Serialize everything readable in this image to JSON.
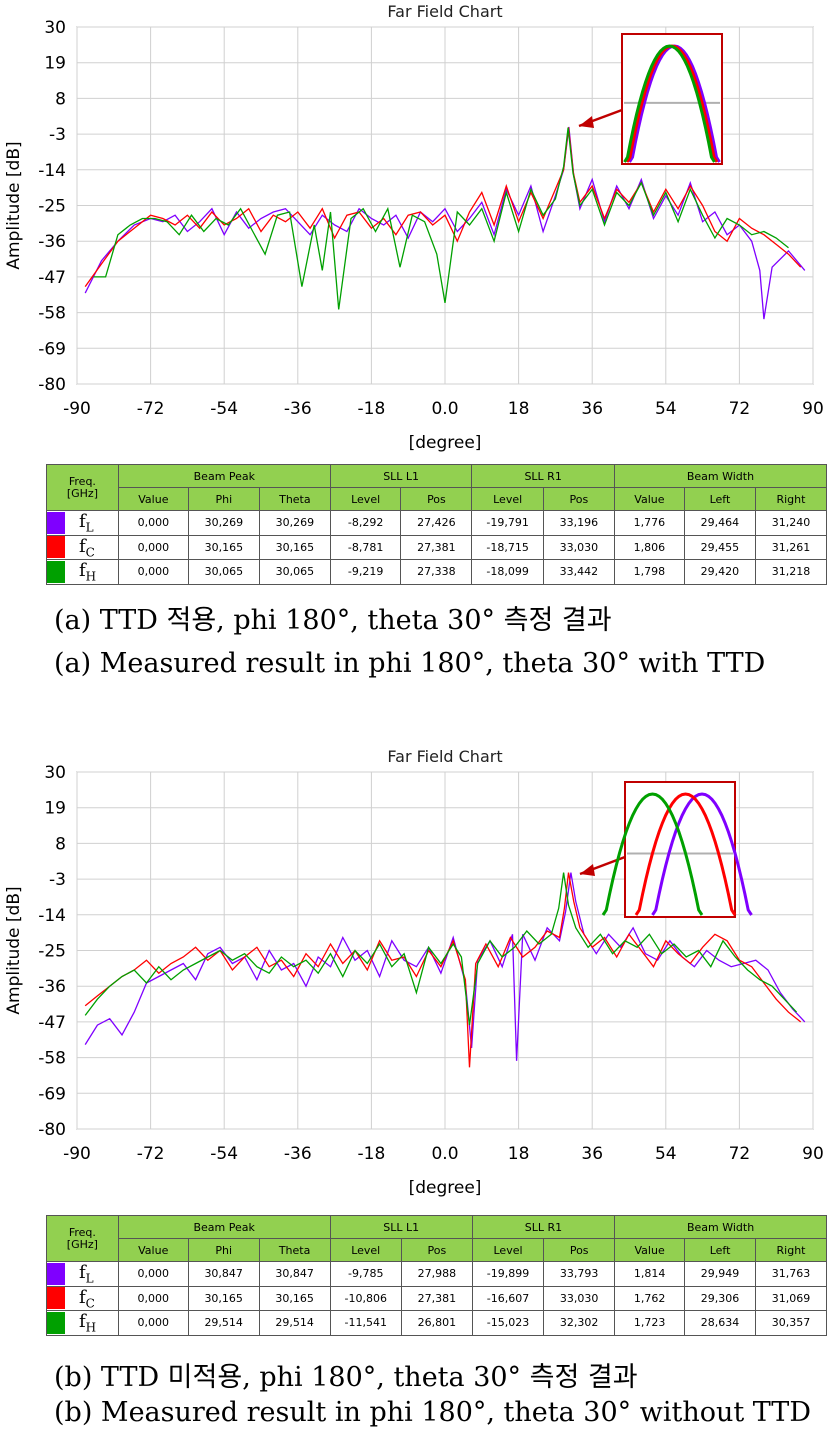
{
  "panels": [
    {
      "caption_kr": "(a) TTD 적용, phi 180°, theta 30° 측정 결과",
      "caption_en": "(a) Measured result in phi 180°, theta 30° with TTD",
      "table": {
        "freq_header": [
          "Freq.",
          "[GHz]"
        ],
        "groups": [
          "Beam Peak",
          "SLL L1",
          "SLL R1",
          "Beam Width"
        ],
        "subheaders": [
          "Value",
          "Phi",
          "Theta",
          "Level",
          "Pos",
          "Level",
          "Pos",
          "Value",
          "Left",
          "Right"
        ],
        "rows": [
          {
            "label": "f",
            "sub": "L",
            "color": "#7f00ff",
            "values": [
              "0,000",
              "30,269",
              "30,269",
              "-8,292",
              "27,426",
              "-19,791",
              "33,196",
              "1,776",
              "29,464",
              "31,240"
            ]
          },
          {
            "label": "f",
            "sub": "C",
            "color": "#ff0000",
            "values": [
              "0,000",
              "30,165",
              "30,165",
              "-8,781",
              "27,381",
              "-18,715",
              "33,030",
              "1,806",
              "29,455",
              "31,261"
            ]
          },
          {
            "label": "f",
            "sub": "H",
            "color": "#00a000",
            "values": [
              "0,000",
              "30,065",
              "30,065",
              "-9,219",
              "27,338",
              "-18,099",
              "33,442",
              "1,798",
              "29,420",
              "31,218"
            ]
          }
        ]
      }
    },
    {
      "caption_kr": "(b) TTD 미적용, phi 180°, theta 30° 측정 결과",
      "caption_en": "(b) Measured result in phi 180°, theta 30° without TTD",
      "table": {
        "freq_header": [
          "Freq.",
          "[GHz]"
        ],
        "groups": [
          "Beam Peak",
          "SLL L1",
          "SLL R1",
          "Beam Width"
        ],
        "subheaders": [
          "Value",
          "Phi",
          "Theta",
          "Level",
          "Pos",
          "Level",
          "Pos",
          "Value",
          "Left",
          "Right"
        ],
        "rows": [
          {
            "label": "f",
            "sub": "L",
            "color": "#7f00ff",
            "values": [
              "0,000",
              "30,847",
              "30,847",
              "-9,785",
              "27,988",
              "-19,899",
              "33,793",
              "1,814",
              "29,949",
              "31,763"
            ]
          },
          {
            "label": "f",
            "sub": "C",
            "color": "#ff0000",
            "values": [
              "0,000",
              "30,165",
              "30,165",
              "-10,806",
              "27,381",
              "-16,607",
              "33,030",
              "1,762",
              "29,306",
              "31,069"
            ]
          },
          {
            "label": "f",
            "sub": "H",
            "color": "#00a000",
            "values": [
              "0,000",
              "29,514",
              "29,514",
              "-11,541",
              "26,801",
              "-15,023",
              "32,302",
              "1,723",
              "28,634",
              "30,357"
            ]
          }
        ]
      }
    }
  ],
  "chart_data": [
    {
      "type": "line",
      "title": "Far Field Chart",
      "xlabel": "[degree]",
      "ylabel": "Amplitude [dB]",
      "xlim": [
        -90,
        90
      ],
      "ylim": [
        -80,
        30
      ],
      "xticks": [
        "-90",
        "-72",
        "-54",
        "-36",
        "-18",
        "0.0",
        "18",
        "36",
        "54",
        "72",
        "90"
      ],
      "yticks": [
        "30",
        "19",
        "8",
        "-3",
        "-14",
        "-25",
        "-36",
        "-47",
        "-58",
        "-69",
        "-80"
      ],
      "grid": true,
      "inset_zoom": true,
      "series": [
        {
          "color": "#7f00ff",
          "x": [
            -88,
            -84,
            -80,
            -76,
            -72,
            -69,
            -66,
            -63,
            -60,
            -57,
            -54,
            -51,
            -48,
            -45,
            -42,
            -39,
            -36,
            -33,
            -30,
            -27,
            -24,
            -21,
            -18,
            -15,
            -12,
            -9,
            -6,
            -3,
            0,
            3,
            6,
            9,
            12,
            15,
            18,
            21,
            24,
            27,
            29,
            30.3,
            31.5,
            33,
            36,
            39,
            42,
            45,
            48,
            51,
            54,
            57,
            60,
            63,
            66,
            69,
            72,
            75,
            77,
            78,
            80,
            84,
            88
          ],
          "y": [
            -52,
            -42,
            -36,
            -31,
            -29,
            -30,
            -28,
            -33,
            -30,
            -26,
            -34,
            -27,
            -32,
            -29,
            -27,
            -26,
            -30,
            -34,
            -28,
            -31,
            -33,
            -26,
            -29,
            -31,
            -28,
            -35,
            -27,
            -30,
            -26,
            -33,
            -29,
            -24,
            -34,
            -20,
            -28,
            -19,
            -33,
            -22,
            -14,
            -0.8,
            -16,
            -26,
            -17,
            -30,
            -19,
            -26,
            -17,
            -29,
            -22,
            -28,
            -18,
            -30,
            -27,
            -34,
            -31,
            -36,
            -45,
            -60,
            -44,
            -39,
            -45
          ]
        },
        {
          "color": "#ff0000",
          "x": [
            -88,
            -84,
            -80,
            -76,
            -72,
            -69,
            -66,
            -63,
            -60,
            -57,
            -54,
            -51,
            -48,
            -45,
            -42,
            -39,
            -36,
            -33,
            -30,
            -27,
            -24,
            -21,
            -18,
            -15,
            -12,
            -9,
            -6,
            -3,
            0,
            3,
            6,
            9,
            12,
            15,
            18,
            21,
            24,
            27,
            29,
            30.2,
            31.4,
            33,
            36,
            39,
            42,
            45,
            48,
            51,
            54,
            57,
            60,
            63,
            66,
            69,
            72,
            75,
            78,
            81,
            84,
            87
          ],
          "y": [
            -50,
            -43,
            -36,
            -32,
            -28,
            -29,
            -31,
            -28,
            -32,
            -27,
            -31,
            -29,
            -26,
            -33,
            -28,
            -30,
            -27,
            -32,
            -26,
            -35,
            -28,
            -27,
            -32,
            -29,
            -34,
            -28,
            -27,
            -31,
            -28,
            -36,
            -27,
            -21,
            -31,
            -19,
            -30,
            -21,
            -29,
            -20,
            -14,
            -0.9,
            -15,
            -24,
            -19,
            -29,
            -20,
            -24,
            -18,
            -27,
            -20,
            -26,
            -19,
            -25,
            -33,
            -36,
            -29,
            -32,
            -34,
            -37,
            -40,
            -44
          ]
        },
        {
          "color": "#00a000",
          "x": [
            -86,
            -83,
            -80,
            -77,
            -74,
            -71,
            -68,
            -65,
            -62,
            -59,
            -56,
            -53,
            -50,
            -47,
            -44,
            -41,
            -38,
            -35,
            -32,
            -30,
            -28,
            -26,
            -23,
            -20,
            -17,
            -14,
            -11,
            -8,
            -5,
            -2,
            0,
            3,
            6,
            9,
            12,
            15,
            18,
            21,
            24,
            27,
            29,
            30.1,
            31.3,
            33,
            36,
            39,
            42,
            45,
            48,
            51,
            54,
            57,
            60,
            63,
            66,
            69,
            72,
            75,
            78,
            81,
            84
          ],
          "y": [
            -47,
            -47,
            -34,
            -31,
            -29,
            -29,
            -30,
            -34,
            -28,
            -33,
            -29,
            -31,
            -26,
            -33,
            -40,
            -28,
            -27,
            -50,
            -31,
            -45,
            -27,
            -57,
            -29,
            -26,
            -33,
            -26,
            -44,
            -28,
            -30,
            -40,
            -55,
            -27,
            -31,
            -26,
            -36,
            -21,
            -33,
            -20,
            -28,
            -23,
            -13,
            -1,
            -15,
            -25,
            -20,
            -31,
            -21,
            -25,
            -18,
            -28,
            -21,
            -30,
            -20,
            -28,
            -35,
            -29,
            -31,
            -34,
            -33,
            -35,
            -38
          ]
        }
      ]
    },
    {
      "type": "line",
      "title": "Far Field Chart",
      "xlabel": "[degree]",
      "ylabel": "Amplitude [dB]",
      "xlim": [
        -90,
        90
      ],
      "ylim": [
        -80,
        30
      ],
      "xticks": [
        "-90",
        "-72",
        "-54",
        "-36",
        "-18",
        "0.0",
        "18",
        "36",
        "54",
        "72",
        "90"
      ],
      "yticks": [
        "30",
        "19",
        "8",
        "-3",
        "-14",
        "-25",
        "-36",
        "-47",
        "-58",
        "-69",
        "-80"
      ],
      "grid": true,
      "inset_zoom": true,
      "series": [
        {
          "color": "#7f00ff",
          "x": [
            -88,
            -85,
            -82,
            -79,
            -76,
            -73,
            -70,
            -67,
            -64,
            -61,
            -58,
            -55,
            -52,
            -49,
            -46,
            -43,
            -40,
            -37,
            -34,
            -31,
            -28,
            -25,
            -22,
            -19,
            -16,
            -13,
            -10,
            -7,
            -4,
            -1,
            2,
            5,
            6.5,
            8,
            11,
            14,
            16.5,
            17.5,
            19,
            22,
            25,
            28,
            29.5,
            30.8,
            32,
            34,
            37,
            40,
            43,
            46,
            49,
            52,
            55,
            58,
            61,
            64,
            67,
            70,
            73,
            76,
            79,
            82,
            85,
            88
          ],
          "y": [
            -54,
            -48,
            -46,
            -51,
            -44,
            -35,
            -33,
            -31,
            -29,
            -34,
            -26,
            -24,
            -29,
            -27,
            -34,
            -25,
            -31,
            -29,
            -36,
            -27,
            -30,
            -21,
            -28,
            -25,
            -33,
            -22,
            -28,
            -30,
            -24,
            -32,
            -21,
            -35,
            -55,
            -28,
            -22,
            -30,
            -20,
            -59,
            -20,
            -28,
            -18,
            -22,
            -13,
            -1,
            -10,
            -20,
            -26,
            -20,
            -24,
            -18,
            -26,
            -28,
            -22,
            -27,
            -30,
            -25,
            -28,
            -30,
            -29,
            -28,
            -31,
            -38,
            -43,
            -47
          ]
        },
        {
          "color": "#ff0000",
          "x": [
            -88,
            -85,
            -82,
            -79,
            -76,
            -73,
            -70,
            -67,
            -64,
            -61,
            -58,
            -55,
            -52,
            -49,
            -46,
            -43,
            -40,
            -37,
            -34,
            -31,
            -28,
            -25,
            -22,
            -19,
            -16,
            -13,
            -10,
            -7,
            -4,
            -1,
            2,
            5,
            6,
            7.5,
            10,
            13,
            16,
            19,
            22,
            25,
            28,
            29.2,
            30.2,
            31.5,
            33,
            36,
            39,
            42,
            45,
            48,
            51,
            54,
            57,
            60,
            63,
            66,
            69,
            72,
            75,
            78,
            81,
            84,
            87
          ],
          "y": [
            -42,
            -39,
            -36,
            -33,
            -31,
            -28,
            -32,
            -29,
            -27,
            -24,
            -28,
            -25,
            -31,
            -27,
            -24,
            -30,
            -28,
            -33,
            -26,
            -30,
            -23,
            -29,
            -25,
            -31,
            -22,
            -28,
            -27,
            -33,
            -25,
            -30,
            -22,
            -34,
            -61,
            -29,
            -23,
            -30,
            -21,
            -27,
            -24,
            -19,
            -21,
            -12,
            -1,
            -10,
            -18,
            -24,
            -21,
            -27,
            -20,
            -25,
            -30,
            -22,
            -26,
            -29,
            -24,
            -20,
            -22,
            -28,
            -30,
            -35,
            -40,
            -44,
            -47
          ]
        },
        {
          "color": "#00a000",
          "x": [
            -88,
            -85,
            -82,
            -79,
            -76,
            -73,
            -70,
            -67,
            -64,
            -61,
            -58,
            -55,
            -52,
            -49,
            -46,
            -43,
            -40,
            -37,
            -34,
            -31,
            -28,
            -25,
            -22,
            -19,
            -16,
            -13,
            -10,
            -7,
            -4,
            -1,
            2,
            4,
            6,
            8,
            11,
            14,
            17,
            20,
            23,
            26,
            27.8,
            29,
            30.2,
            32,
            35,
            38,
            41,
            44,
            47,
            50,
            53,
            56,
            59,
            62,
            65,
            68,
            71,
            74,
            77,
            80,
            83,
            86
          ],
          "y": [
            -45,
            -40,
            -36,
            -33,
            -31,
            -35,
            -30,
            -34,
            -31,
            -29,
            -27,
            -25,
            -28,
            -26,
            -30,
            -32,
            -27,
            -30,
            -28,
            -32,
            -26,
            -33,
            -25,
            -29,
            -23,
            -30,
            -26,
            -38,
            -24,
            -29,
            -23,
            -27,
            -48,
            -29,
            -22,
            -27,
            -24,
            -19,
            -23,
            -20,
            -12,
            -1,
            -11,
            -18,
            -24,
            -20,
            -26,
            -22,
            -24,
            -20,
            -26,
            -23,
            -27,
            -25,
            -30,
            -22,
            -27,
            -31,
            -34,
            -36,
            -40,
            -44
          ]
        }
      ]
    }
  ]
}
